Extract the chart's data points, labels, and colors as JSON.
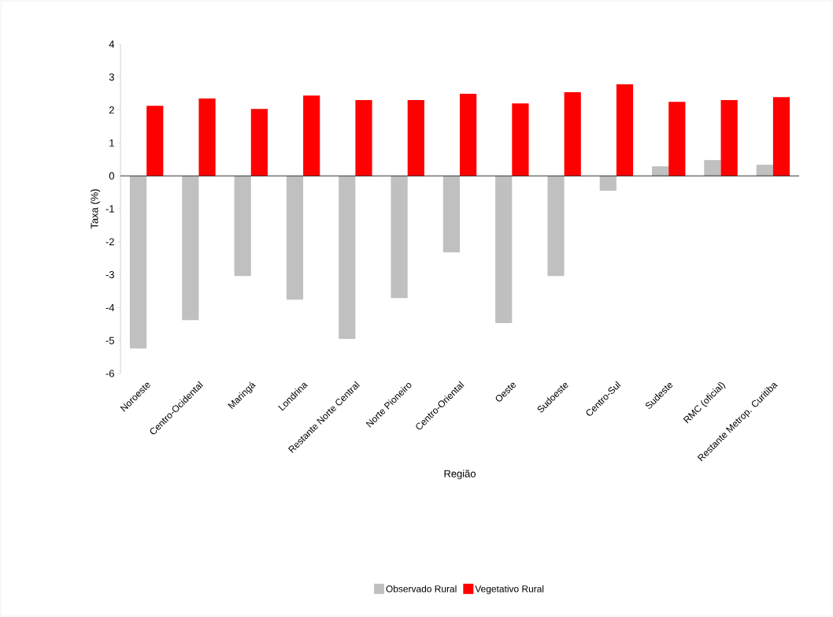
{
  "chart_data": {
    "type": "bar",
    "categories": [
      "Noroeste",
      "Centro-Ocidental",
      "Maringá",
      "Londrina",
      "Restante Norte Central",
      "Norte Pioneiro",
      "Centro-Oriental",
      "Oeste",
      "Sudoeste",
      "Centro-Sul",
      "Sudeste",
      "RMC (oficial)",
      "Restante Metrop. Curitiba"
    ],
    "series": [
      {
        "name": "Observado Rural",
        "color": "#c0c0c0",
        "values": [
          -5.24,
          -4.38,
          -3.04,
          -3.76,
          -4.95,
          -3.71,
          -2.32,
          -4.47,
          -3.04,
          -0.45,
          0.29,
          0.48,
          0.34
        ]
      },
      {
        "name": "Vegetativo Rural",
        "color": "#ff0000",
        "values": [
          2.13,
          2.35,
          2.03,
          2.44,
          2.3,
          2.3,
          2.49,
          2.2,
          2.54,
          2.78,
          2.25,
          2.3,
          2.39
        ]
      }
    ],
    "xlabel": "Região",
    "ylabel": "Taxa (%)",
    "ylim": [
      -6,
      4
    ],
    "yticks": [
      -6,
      -5,
      -4,
      -3,
      -2,
      -1,
      0,
      1,
      2,
      3,
      4
    ],
    "legend": "bottom"
  }
}
